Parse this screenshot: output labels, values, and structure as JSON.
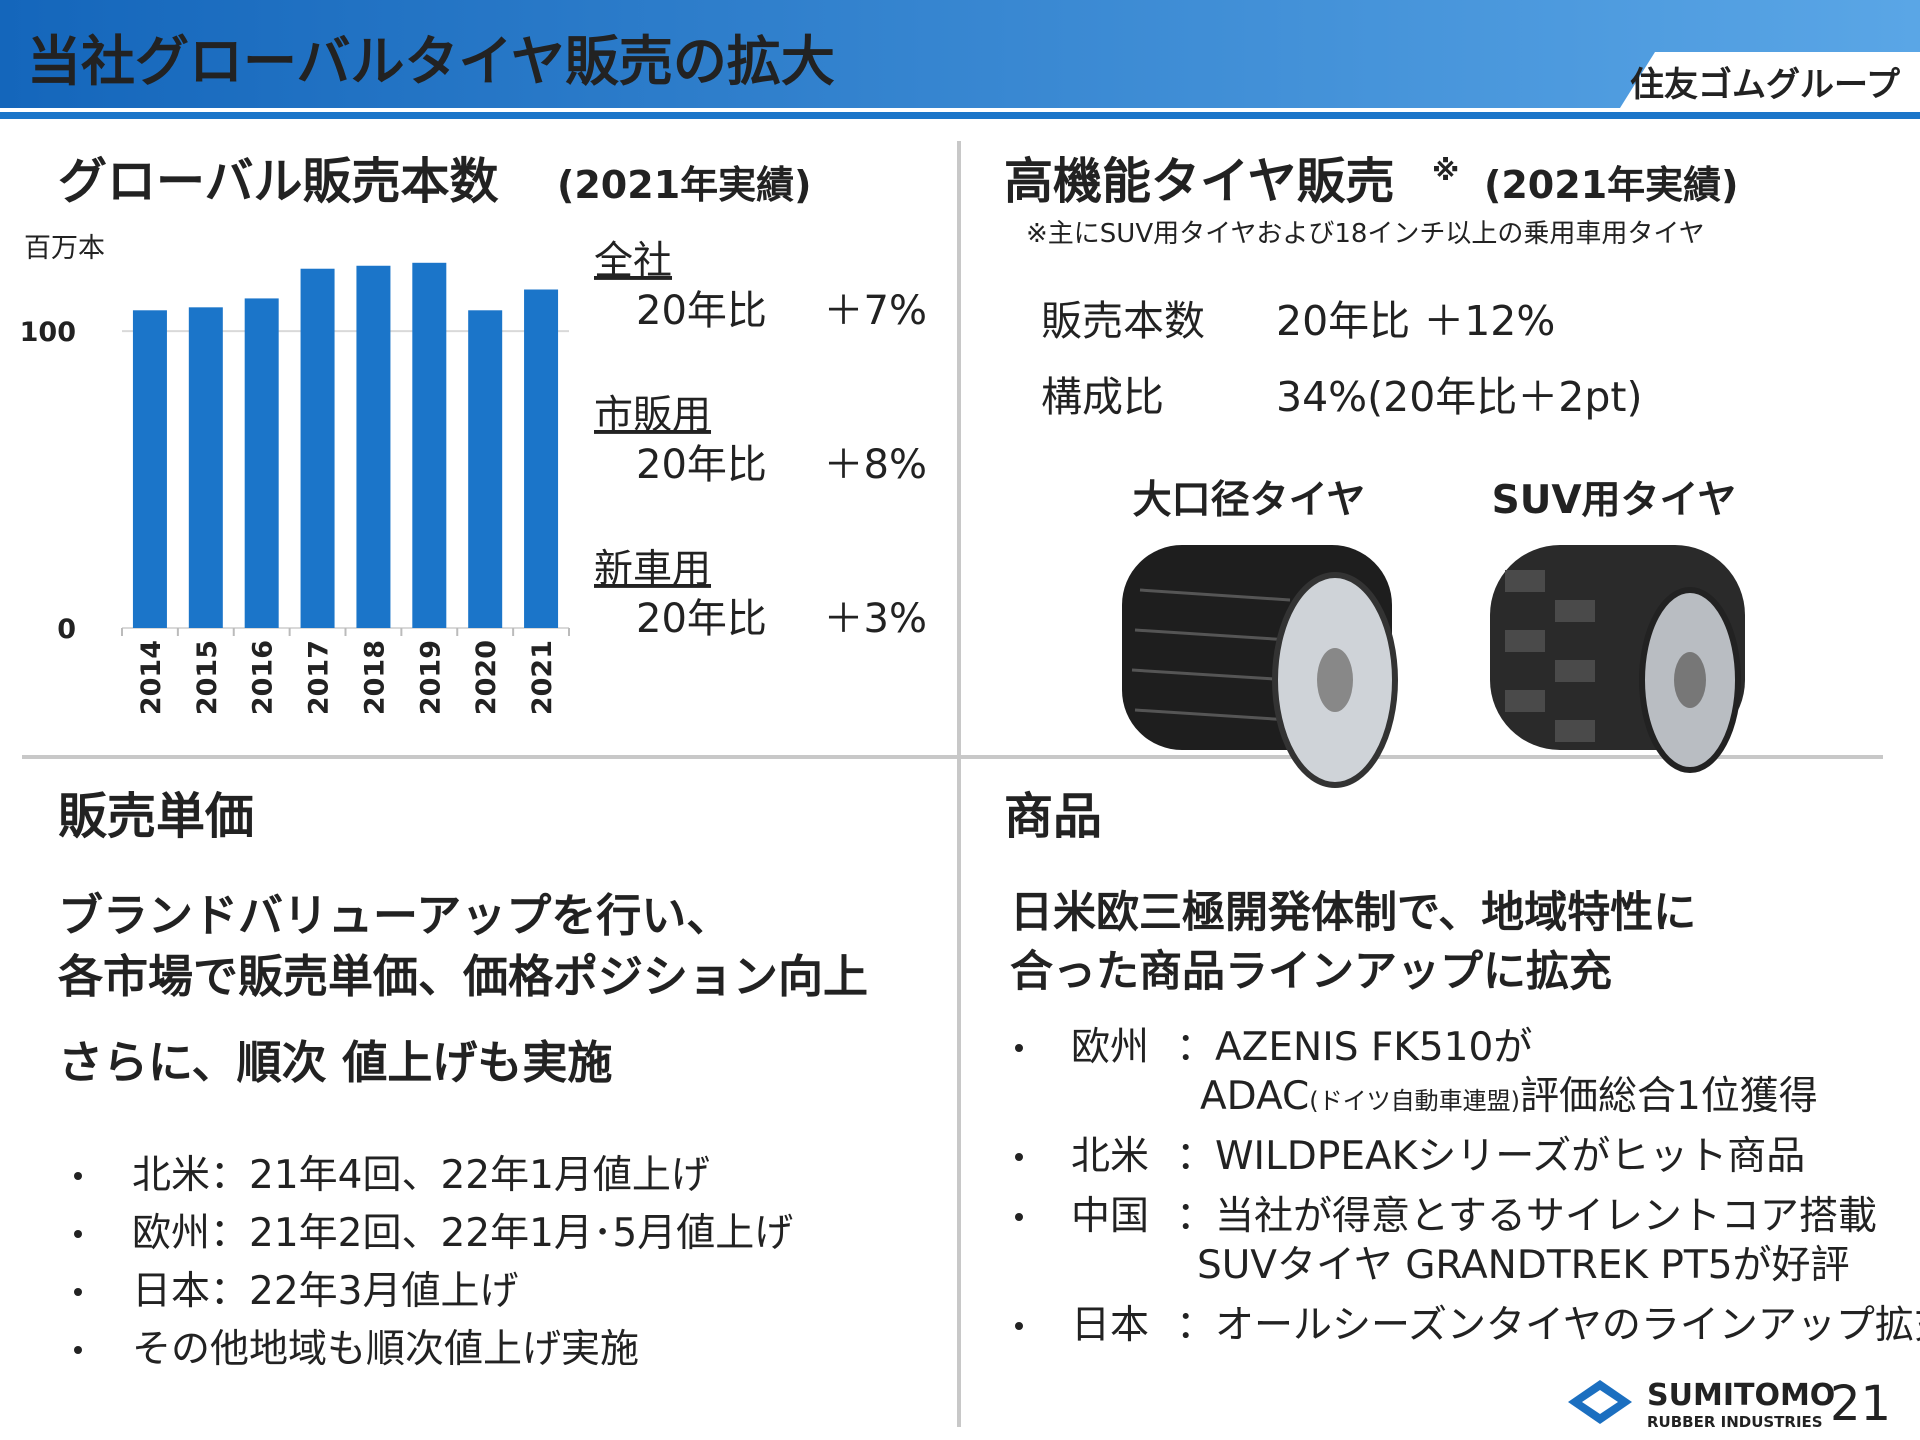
{
  "header": {
    "title": "当社グローバルタイヤ販売の拡大",
    "brand": "住友ゴムグループ"
  },
  "chart_data": {
    "type": "bar",
    "title": "グローバル販売本数",
    "subtitle": "(2021年実績)",
    "y_label": "百万本",
    "categories": [
      "2014",
      "2015",
      "2016",
      "2017",
      "2018",
      "2019",
      "2020",
      "2021"
    ],
    "values": [
      107,
      108,
      111,
      121,
      122,
      123,
      107,
      114
    ],
    "color": "#1b75c9",
    "ylim": [
      0,
      130
    ],
    "yticks": [
      0,
      100
    ],
    "grid": true
  },
  "global_growth": [
    {
      "label": "全社",
      "comparison": "20年比",
      "change": "＋7%"
    },
    {
      "label": "市販用",
      "comparison": "20年比",
      "change": "＋8%"
    },
    {
      "label": "新車用",
      "comparison": "20年比",
      "change": "＋3%"
    }
  ],
  "high_performance": {
    "title": "高機能タイヤ販売",
    "note_mark": "※",
    "subtitle": "(2021年実績)",
    "note": "※主にSUV用タイヤおよび18インチ以上の乗用車用タイヤ",
    "rows": [
      {
        "label": "販売本数",
        "value": "20年比 ＋12%"
      },
      {
        "label": "構成比",
        "value": "34%(20年比＋2pt)"
      }
    ],
    "images": [
      {
        "label": "大口径タイヤ"
      },
      {
        "label": "SUV用タイヤ"
      }
    ]
  },
  "unit_price": {
    "title": "販売単価",
    "headline": [
      "ブランドバリューアップを行い、",
      "各市場で販売単価、価格ポジション向上"
    ],
    "emphasis": "さらに、順次 値上げも実施",
    "bullets": [
      "北米：21年4回、22年1月値上げ",
      "欧州：21年2回、22年1月･5月値上げ",
      "日本：22年3月値上げ",
      "その他地域も順次値上げ実施"
    ]
  },
  "products": {
    "title": "商品",
    "headline": [
      "日米欧三極開発体制で、地域特性に",
      "合った商品ラインアップに拡充"
    ],
    "bullets": [
      {
        "label": "欧州",
        "lines": [
          "：AZENIS FK510が",
          [
            "ADAC",
            "(ドイツ自動車連盟)",
            "評価総合1位獲得"
          ]
        ]
      },
      {
        "label": "北米",
        "lines": [
          "：WILDPEAKシリーズがヒット商品"
        ]
      },
      {
        "label": "中国",
        "lines": [
          "：当社が得意とするサイレントコア搭載",
          "SUVタイヤ GRANDTREK PT5が好評"
        ]
      },
      {
        "label": "日本",
        "lines": [
          "：オールシーズンタイヤのラインアップ拡充"
        ]
      }
    ]
  },
  "footer": {
    "company": "SUMITOMO",
    "company_sub": "RUBBER INDUSTRIES",
    "page": "21"
  }
}
